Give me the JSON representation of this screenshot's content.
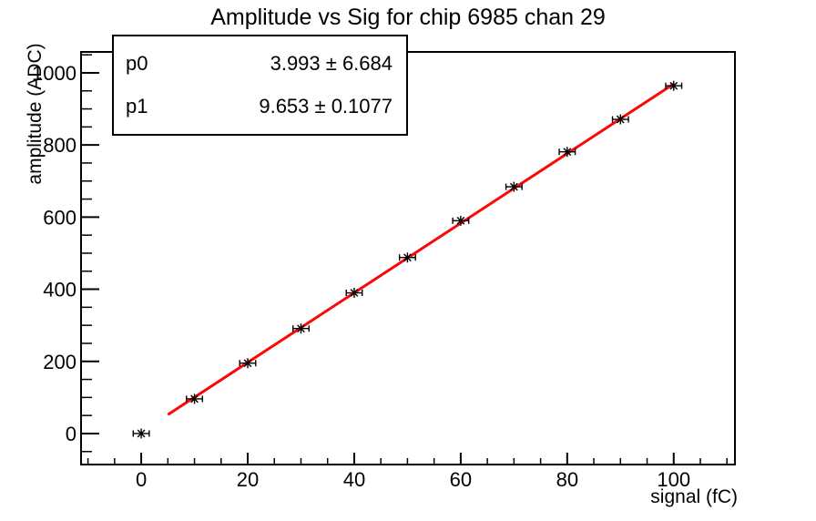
{
  "title": "Amplitude vs Sig for chip 6985 chan 29",
  "stats": {
    "rows": [
      {
        "name": "p0",
        "value": "3.993 ± 6.684"
      },
      {
        "name": "p1",
        "value": "9.653 ± 0.1077"
      }
    ]
  },
  "chart_data": {
    "type": "scatter",
    "title": "Amplitude vs Sig for chip 6985 chan 29",
    "xlabel": "signal (fC)",
    "ylabel": "amplitude (ADC)",
    "x": [
      0,
      10,
      20,
      30,
      40,
      50,
      60,
      70,
      80,
      90,
      100
    ],
    "y": [
      0,
      96,
      195,
      291,
      390,
      488,
      590,
      684,
      781,
      871,
      964
    ],
    "x_err": 1.5,
    "marker": "asterisk-with-error-bars",
    "fit": {
      "model": "p0 + p1*x",
      "p0": 3.993,
      "p0_err": 6.684,
      "p1": 9.653,
      "p1_err": 0.1077,
      "range": [
        5,
        100
      ]
    },
    "axes": {
      "xlim": [
        -11.3,
        111.5
      ],
      "ylim": [
        -86,
        1058
      ],
      "x_major_ticks": [
        0,
        20,
        40,
        60,
        80,
        100
      ],
      "y_major_ticks": [
        0,
        200,
        400,
        600,
        800,
        1000
      ],
      "x_minor_step": 5,
      "y_minor_step": 50
    },
    "grid": false,
    "legend_position": "stats-box-top-left",
    "colors": {
      "marker": "#000000",
      "fit_line": "#fb0707",
      "frame": "#000000",
      "background": "#ffffff"
    }
  }
}
